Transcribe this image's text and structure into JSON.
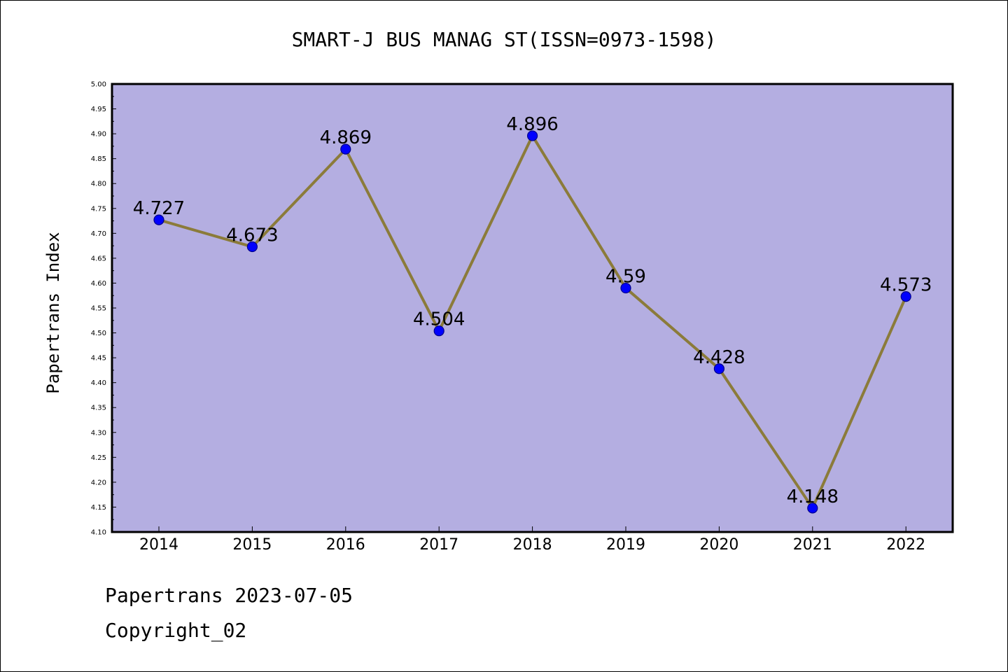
{
  "chart_data": {
    "type": "line",
    "title": "SMART-J BUS MANAG ST(ISSN=0973-1598)",
    "ylabel": "Papertrans Index",
    "xlabel": "",
    "categories": [
      "2014",
      "2015",
      "2016",
      "2017",
      "2018",
      "2019",
      "2020",
      "2021",
      "2022"
    ],
    "series": [
      {
        "values": [
          4.727,
          4.673,
          4.869,
          4.504,
          4.896,
          4.59,
          4.428,
          4.148,
          4.573
        ]
      }
    ],
    "data_labels": [
      "4.727",
      "4.673",
      "4.869",
      "4.504",
      "4.896",
      "4.59",
      "4.428",
      "4.148",
      "4.573"
    ],
    "ylim": [
      4.1,
      5.0
    ],
    "yticks": [
      "4.10",
      "4.15",
      "4.20",
      "4.25",
      "4.30",
      "4.35",
      "4.40",
      "4.45",
      "4.50",
      "4.55",
      "4.60",
      "4.65",
      "4.70",
      "4.75",
      "4.80",
      "4.85",
      "4.90",
      "4.95",
      "5.00"
    ],
    "grid": false,
    "colors": {
      "plot_background": "#b4aee1",
      "line": "#8b7b3a",
      "marker": "#0000ff",
      "marker_edge": "#00008b"
    }
  },
  "footer": {
    "line1": "Papertrans 2023-07-05",
    "line2": "Copyright_02"
  }
}
